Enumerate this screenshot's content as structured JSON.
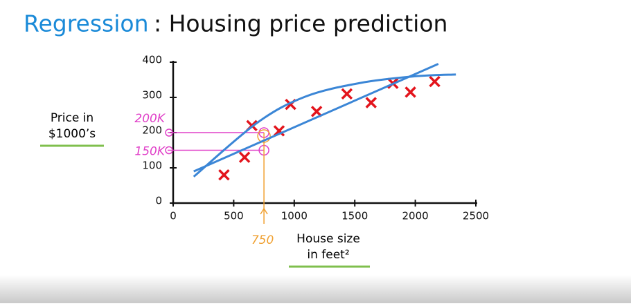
{
  "chart_data": {
    "type": "scatter",
    "title": [
      "Regression",
      ": Housing price prediction"
    ],
    "title_colors": [
      "#1a8ad8",
      "#111111"
    ],
    "y_label": [
      "Price in",
      "$1000’s"
    ],
    "x_label": [
      "House size",
      "in feet²"
    ],
    "label_underline_color": "#7fbf4d",
    "xlim": [
      0,
      2500
    ],
    "xticks": [
      0,
      500,
      1000,
      1500,
      2000,
      2500
    ],
    "ylim": [
      0,
      400
    ],
    "yticks": [
      0,
      100,
      200,
      300,
      400
    ],
    "series": [
      {
        "type": "scatter",
        "marker": "x",
        "color": "#e3141c",
        "x": [
          420,
          590,
          650,
          875,
          970,
          1185,
          1435,
          1635,
          1815,
          1960,
          2160
        ],
        "values": [
          80,
          130,
          220,
          205,
          280,
          260,
          310,
          285,
          340,
          315,
          345
        ]
      },
      {
        "type": "line",
        "color": "#3b86d6",
        "x": [
          170,
          2190
        ],
        "values": [
          90,
          395
        ]
      },
      {
        "type": "line",
        "smooth": true,
        "color": "#3b86d6",
        "x": [
          170,
          690,
          1090,
          1545,
          2000,
          2335
        ],
        "values": [
          75,
          227,
          302,
          341,
          360,
          365
        ]
      }
    ],
    "annotations": [
      {
        "text": "200K",
        "y": 200,
        "x": 750,
        "color": "#e040c8"
      },
      {
        "text": "150K",
        "y": 150,
        "x": 750,
        "color": "#e040c8"
      },
      {
        "text": "750",
        "x": 750,
        "y": 200,
        "color": "#f0a030"
      }
    ]
  }
}
